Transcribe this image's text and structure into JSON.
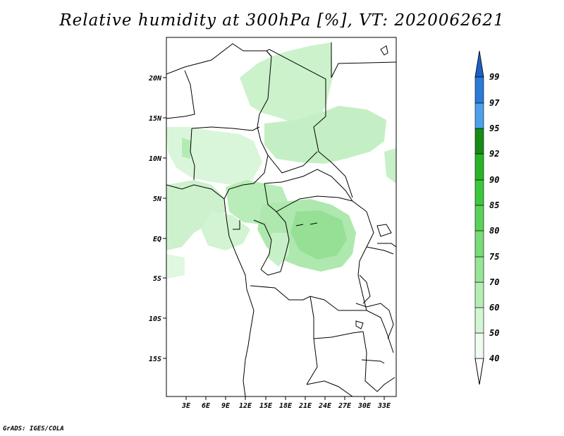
{
  "title": "Relative humidity at 300hPa [%], VT: 2020062621",
  "credit": "GrADS: IGES/COLA",
  "map": {
    "lat_ticks": [
      "20N",
      "15N",
      "10N",
      "5N",
      "EQ",
      "5S",
      "10S",
      "15S"
    ],
    "lon_ticks": [
      "3E",
      "6E",
      "9E",
      "12E",
      "15E",
      "18E",
      "21E",
      "24E",
      "27E",
      "30E",
      "33E"
    ]
  },
  "colorbar": {
    "levels": [
      "40",
      "50",
      "60",
      "70",
      "75",
      "80",
      "85",
      "90",
      "92",
      "95",
      "97",
      "99"
    ],
    "colors": [
      "#f0fbf0",
      "#d2f5d2",
      "#b4eeb4",
      "#96e696",
      "#78dc78",
      "#5ad25a",
      "#3cc83c",
      "#28b428",
      "#168c16",
      "#4ea0ea",
      "#2a7ad8",
      "#1e5ec8"
    ]
  }
}
